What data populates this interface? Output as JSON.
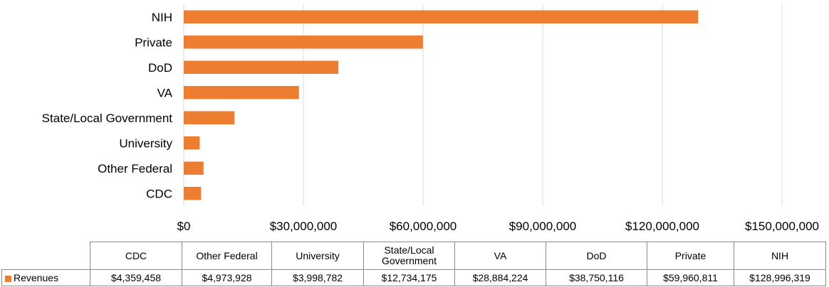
{
  "chart_data": {
    "type": "bar",
    "orientation": "horizontal",
    "categories": [
      "NIH",
      "Private",
      "DoD",
      "VA",
      "State/Local Government",
      "University",
      "Other Federal",
      "CDC"
    ],
    "series": [
      {
        "name": "Revenues",
        "color": "#ED7D31",
        "values": [
          128996319,
          59960811,
          38750116,
          28884224,
          12734175,
          3998782,
          4973928,
          4359458
        ]
      }
    ],
    "xlim": [
      0,
      150000000
    ],
    "x_ticks": [
      0,
      30000000,
      60000000,
      90000000,
      120000000,
      150000000
    ],
    "x_tick_labels": [
      "$0",
      "$30,000,000",
      "$60,000,000",
      "$90,000,000",
      "$120,000,000",
      "$150,000,000"
    ],
    "grid": "vertical",
    "data_table": {
      "columns": [
        "CDC",
        "Other Federal",
        "University",
        "State/Local Government",
        "VA",
        "DoD",
        "Private",
        "NIH"
      ],
      "series_label": "Revenues",
      "values": [
        "$4,359,458",
        "$4,973,928",
        "$3,998,782",
        "$12,734,175",
        "$28,884,224",
        "$38,750,116",
        "$59,960,811",
        "$128,996,319"
      ]
    }
  }
}
